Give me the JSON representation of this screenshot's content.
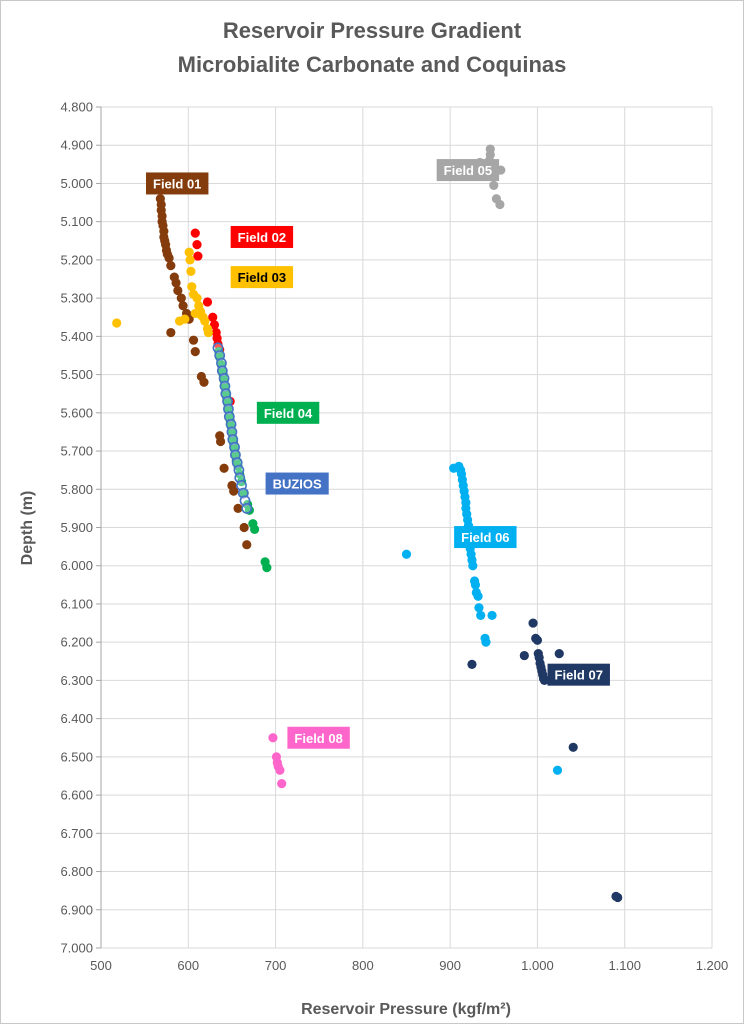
{
  "chart_data": {
    "type": "scatter",
    "title": "Reservoir Pressure Gradient",
    "subtitle": "Microbialite Carbonate and Coquinas",
    "xlabel": "Reservoir Pressure (kgf/m²)",
    "ylabel": "Depth (m)",
    "xlim": [
      500,
      1200
    ],
    "ylim": [
      4800,
      7000
    ],
    "y_reversed": true,
    "grid": true,
    "x_ticks": [
      500,
      600,
      700,
      800,
      900,
      1000,
      1100,
      1200
    ],
    "x_tick_labels": [
      "500",
      "600",
      "700",
      "800",
      "900",
      "1.000",
      "1.100",
      "1.200"
    ],
    "y_ticks": [
      4800,
      4900,
      5000,
      5100,
      5200,
      5300,
      5400,
      5500,
      5600,
      5700,
      5800,
      5900,
      6000,
      6100,
      6200,
      6300,
      6400,
      6500,
      6600,
      6700,
      6800,
      6900,
      7000
    ],
    "y_tick_labels": [
      "4.800",
      "4.900",
      "5.000",
      "5.100",
      "5.200",
      "5.300",
      "5.400",
      "5.500",
      "5.600",
      "5.700",
      "5.800",
      "5.900",
      "6.000",
      "6.100",
      "6.200",
      "6.300",
      "6.400",
      "6.500",
      "6.600",
      "6.700",
      "6.800",
      "6.900",
      "7.000"
    ],
    "series": [
      {
        "name": "Field 01",
        "color": "#843c0c",
        "label_at": [
          555,
          5000
        ],
        "points": [
          [
            568,
            5040
          ],
          [
            569,
            5055
          ],
          [
            569,
            5070
          ],
          [
            570,
            5085
          ],
          [
            570,
            5100
          ],
          [
            571,
            5110
          ],
          [
            572,
            5125
          ],
          [
            572,
            5140
          ],
          [
            573,
            5150
          ],
          [
            574,
            5160
          ],
          [
            575,
            5175
          ],
          [
            576,
            5185
          ],
          [
            578,
            5195
          ],
          [
            580,
            5215
          ],
          [
            584,
            5245
          ],
          [
            586,
            5260
          ],
          [
            588,
            5280
          ],
          [
            592,
            5300
          ],
          [
            594,
            5320
          ],
          [
            598,
            5340
          ],
          [
            601,
            5355
          ],
          [
            580,
            5390
          ],
          [
            606,
            5410
          ],
          [
            608,
            5440
          ],
          [
            615,
            5505
          ],
          [
            618,
            5520
          ],
          [
            636,
            5660
          ],
          [
            637,
            5675
          ],
          [
            641,
            5745
          ],
          [
            650,
            5790
          ],
          [
            652,
            5805
          ],
          [
            657,
            5850
          ],
          [
            664,
            5900
          ],
          [
            667,
            5945
          ]
        ]
      },
      {
        "name": "Field 02",
        "color": "#ff0000",
        "label_at": [
          652,
          5140
        ],
        "points": [
          [
            608,
            5130
          ],
          [
            610,
            5160
          ],
          [
            611,
            5190
          ],
          [
            622,
            5310
          ],
          [
            628,
            5350
          ],
          [
            630,
            5370
          ],
          [
            632,
            5390
          ],
          [
            633,
            5405
          ],
          [
            634,
            5420
          ],
          [
            636,
            5435
          ],
          [
            638,
            5475
          ],
          [
            648,
            5570
          ]
        ]
      },
      {
        "name": "Field 03",
        "color": "#ffc000",
        "label_at": [
          652,
          5245
        ],
        "points": [
          [
            601,
            5180
          ],
          [
            602,
            5200
          ],
          [
            603,
            5230
          ],
          [
            604,
            5270
          ],
          [
            606,
            5290
          ],
          [
            610,
            5300
          ],
          [
            612,
            5320
          ],
          [
            614,
            5335
          ],
          [
            615,
            5345
          ],
          [
            617,
            5350
          ],
          [
            619,
            5360
          ],
          [
            622,
            5380
          ],
          [
            623,
            5390
          ],
          [
            596,
            5355
          ],
          [
            608,
            5340
          ],
          [
            590,
            5360
          ],
          [
            518,
            5365
          ]
        ]
      },
      {
        "name": "Field 04",
        "color": "#00b050",
        "label_at": [
          682,
          5600
        ],
        "points": [
          [
            635,
            5440
          ],
          [
            636,
            5455
          ],
          [
            638,
            5475
          ],
          [
            639,
            5490
          ],
          [
            640,
            5500
          ],
          [
            641,
            5515
          ],
          [
            642,
            5530
          ],
          [
            643,
            5545
          ],
          [
            644,
            5560
          ],
          [
            645,
            5575
          ],
          [
            646,
            5590
          ],
          [
            647,
            5605
          ],
          [
            648,
            5620
          ],
          [
            649,
            5635
          ],
          [
            650,
            5650
          ],
          [
            651,
            5665
          ],
          [
            652,
            5680
          ],
          [
            653,
            5695
          ],
          [
            654,
            5710
          ],
          [
            655,
            5725
          ],
          [
            657,
            5740
          ],
          [
            659,
            5760
          ],
          [
            661,
            5780
          ],
          [
            664,
            5810
          ],
          [
            668,
            5840
          ],
          [
            670,
            5855
          ],
          [
            674,
            5890
          ],
          [
            676,
            5905
          ],
          [
            688,
            5990
          ],
          [
            690,
            6005
          ]
        ]
      },
      {
        "name": "BUZIOS",
        "color": "#4472c4",
        "hollow": true,
        "label_at": [
          692,
          5785
        ],
        "points": [
          [
            634,
            5430
          ],
          [
            636,
            5450
          ],
          [
            638,
            5470
          ],
          [
            639,
            5490
          ],
          [
            641,
            5510
          ],
          [
            642,
            5530
          ],
          [
            643,
            5550
          ],
          [
            645,
            5570
          ],
          [
            646,
            5590
          ],
          [
            647,
            5610
          ],
          [
            649,
            5630
          ],
          [
            650,
            5650
          ],
          [
            651,
            5670
          ],
          [
            653,
            5690
          ],
          [
            654,
            5710
          ],
          [
            656,
            5730
          ],
          [
            658,
            5750
          ],
          [
            659,
            5770
          ],
          [
            661,
            5790
          ],
          [
            663,
            5810
          ],
          [
            665,
            5830
          ],
          [
            667,
            5850
          ]
        ]
      },
      {
        "name": "Field 05",
        "color": "#a6a6a6",
        "label_at": [
          888,
          4965
        ],
        "points": [
          [
            946,
            4910
          ],
          [
            946,
            4925
          ],
          [
            945,
            4940
          ],
          [
            934,
            4945
          ],
          [
            950,
            4950
          ],
          [
            938,
            4960
          ],
          [
            953,
            4965
          ],
          [
            958,
            4965
          ],
          [
            950,
            5005
          ],
          [
            953,
            5040
          ],
          [
            957,
            5055
          ]
        ]
      },
      {
        "name": "Field 06",
        "color": "#00b0f0",
        "label_at": [
          908,
          5925
        ],
        "points": [
          [
            904,
            5745
          ],
          [
            910,
            5740
          ],
          [
            912,
            5750
          ],
          [
            913,
            5760
          ],
          [
            914,
            5775
          ],
          [
            915,
            5790
          ],
          [
            916,
            5805
          ],
          [
            917,
            5820
          ],
          [
            918,
            5835
          ],
          [
            918,
            5850
          ],
          [
            919,
            5865
          ],
          [
            920,
            5880
          ],
          [
            921,
            5895
          ],
          [
            921,
            5910
          ],
          [
            922,
            5925
          ],
          [
            923,
            5940
          ],
          [
            923,
            5955
          ],
          [
            924,
            5970
          ],
          [
            925,
            5985
          ],
          [
            926,
            6000
          ],
          [
            928,
            6040
          ],
          [
            929,
            6050
          ],
          [
            930,
            6070
          ],
          [
            932,
            6080
          ],
          [
            933,
            6110
          ],
          [
            935,
            6130
          ],
          [
            948,
            6130
          ],
          [
            940,
            6190
          ],
          [
            941,
            6200
          ],
          [
            850,
            5970
          ],
          [
            1023,
            6535
          ]
        ]
      },
      {
        "name": "Field 07",
        "color": "#203864",
        "label_at": [
          1015,
          6285
        ],
        "points": [
          [
            995,
            6150
          ],
          [
            998,
            6190
          ],
          [
            1000,
            6195
          ],
          [
            1001,
            6230
          ],
          [
            1002,
            6240
          ],
          [
            1003,
            6255
          ],
          [
            1004,
            6265
          ],
          [
            1005,
            6275
          ],
          [
            1006,
            6285
          ],
          [
            1007,
            6295
          ],
          [
            1008,
            6300
          ],
          [
            985,
            6235
          ],
          [
            1025,
            6230
          ],
          [
            925,
            6258
          ],
          [
            1041,
            6475
          ],
          [
            1090,
            6865
          ],
          [
            1092,
            6868
          ]
        ]
      },
      {
        "name": "Field 08",
        "color": "#ff66cc",
        "label_at": [
          717,
          6450
        ],
        "points": [
          [
            697,
            6450
          ],
          [
            701,
            6500
          ],
          [
            702,
            6515
          ],
          [
            703,
            6525
          ],
          [
            705,
            6535
          ],
          [
            707,
            6570
          ]
        ]
      }
    ]
  }
}
